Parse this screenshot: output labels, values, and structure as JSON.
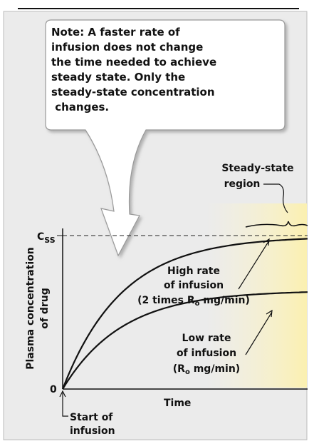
{
  "note": [
    "Note: A faster rate of",
    "infusion does not change",
    "the time needed to achieve",
    "steady state. Only the",
    "steady-state concentration",
    " changes."
  ],
  "steady_state_label": [
    "Steady-state",
    "region"
  ],
  "css_label": {
    "main": "C",
    "sub": "SS"
  },
  "y_axis_label": [
    "Plasma concentration",
    "of drug"
  ],
  "origin_label": "0",
  "x_axis_label": "Time",
  "start_label": [
    "Start of",
    "infusion"
  ],
  "high_rate": {
    "lines": [
      "High rate",
      "of infusion"
    ],
    "dose": {
      "before": "(2 times R",
      "sub": "o",
      "after": " mg/min)"
    }
  },
  "low_rate": {
    "lines": [
      "Low rate",
      "of infusion"
    ],
    "dose": {
      "before": "(R",
      "sub": "o",
      "after": " mg/min)"
    }
  }
}
